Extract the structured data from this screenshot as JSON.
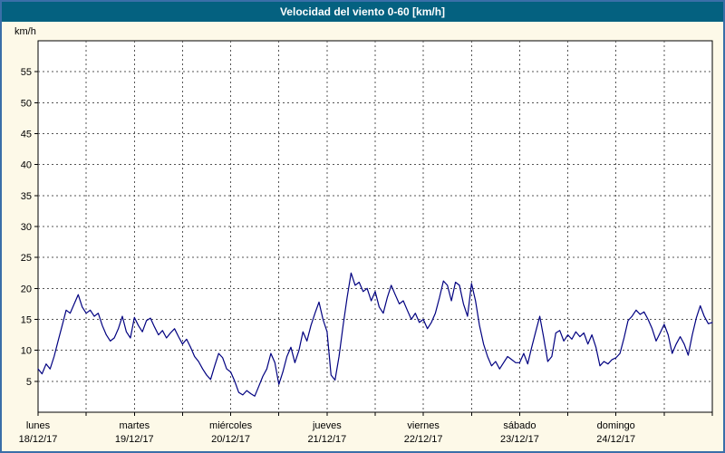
{
  "window": {
    "title": "Velocidad del viento 0-60 [km/h]"
  },
  "colors": {
    "frame": "#3a6fa8",
    "background": "#fdf9e8",
    "title_bar": "#046180",
    "title_text": "#ffffff",
    "plot_background": "#ffffff",
    "axis": "#000000",
    "grid": "#555555",
    "line": "#000080"
  },
  "chart_data": {
    "type": "line",
    "title": "Velocidad del viento 0-60 [km/h]",
    "xlabel": "",
    "ylabel": "km/h",
    "ylim": [
      0,
      60
    ],
    "ytick_min": 5,
    "ytick_max": 55,
    "ytick_step": 5,
    "grid": "on",
    "grid_style": "dashed",
    "legend_position": "none",
    "x_total_hours": 168,
    "x_grid_hours": 12,
    "day_ticks": [
      {
        "name": "lunes",
        "date": "18/12/17"
      },
      {
        "name": "martes",
        "date": "19/12/17"
      },
      {
        "name": "miércoles",
        "date": "20/12/17"
      },
      {
        "name": "jueves",
        "date": "21/12/17"
      },
      {
        "name": "viernes",
        "date": "22/12/17"
      },
      {
        "name": "sábado",
        "date": "23/12/17"
      },
      {
        "name": "domingo",
        "date": "24/12/17"
      }
    ],
    "series": [
      {
        "name": "Velocidad del viento",
        "color": "#000080",
        "x_step_hours": 1,
        "values": [
          7.0,
          6.2,
          7.8,
          7.0,
          9.0,
          11.5,
          14.0,
          16.5,
          16.0,
          17.5,
          19.0,
          17.0,
          16.0,
          16.5,
          15.5,
          16.0,
          14.0,
          12.5,
          11.5,
          12.0,
          13.5,
          15.5,
          13.0,
          12.0,
          15.3,
          14.0,
          13.0,
          14.8,
          15.2,
          13.8,
          12.5,
          13.2,
          12.0,
          12.8,
          13.5,
          12.2,
          11.0,
          11.8,
          10.5,
          9.0,
          8.2,
          7.0,
          6.0,
          5.3,
          7.5,
          9.5,
          8.8,
          7.0,
          6.5,
          5.0,
          3.2,
          2.8,
          3.5,
          3.0,
          2.6,
          4.2,
          5.8,
          7.0,
          9.5,
          8.0,
          4.5,
          6.5,
          9.0,
          10.5,
          8.0,
          10.0,
          13.0,
          11.5,
          14.0,
          16.0,
          17.8,
          15.0,
          13.0,
          6.0,
          5.2,
          9.0,
          14.0,
          18.5,
          22.5,
          20.5,
          21.0,
          19.5,
          20.0,
          18.0,
          19.5,
          17.0,
          16.0,
          18.5,
          20.5,
          19.0,
          17.5,
          18.0,
          16.5,
          15.0,
          16.0,
          14.5,
          15.0,
          13.5,
          14.5,
          16.0,
          18.5,
          21.2,
          20.5,
          18.0,
          21.0,
          20.5,
          17.5,
          15.5,
          20.8,
          18.0,
          14.0,
          11.0,
          9.0,
          7.5,
          8.2,
          7.0,
          8.0,
          9.0,
          8.5,
          8.0,
          8.0,
          9.5,
          7.8,
          10.5,
          13.0,
          15.5,
          12.0,
          8.2,
          9.0,
          12.8,
          13.2,
          11.5,
          12.5,
          11.8,
          13.0,
          12.2,
          12.8,
          11.0,
          12.5,
          10.5,
          7.5,
          8.2,
          7.8,
          8.5,
          8.8,
          9.5,
          12.0,
          14.8,
          15.5,
          16.5,
          15.8,
          16.2,
          15.0,
          13.5,
          11.5,
          12.8,
          14.2,
          12.5,
          9.5,
          11.0,
          12.2,
          11.0,
          9.2,
          12.5,
          15.2,
          17.2,
          15.5,
          14.3,
          14.5
        ]
      }
    ]
  }
}
